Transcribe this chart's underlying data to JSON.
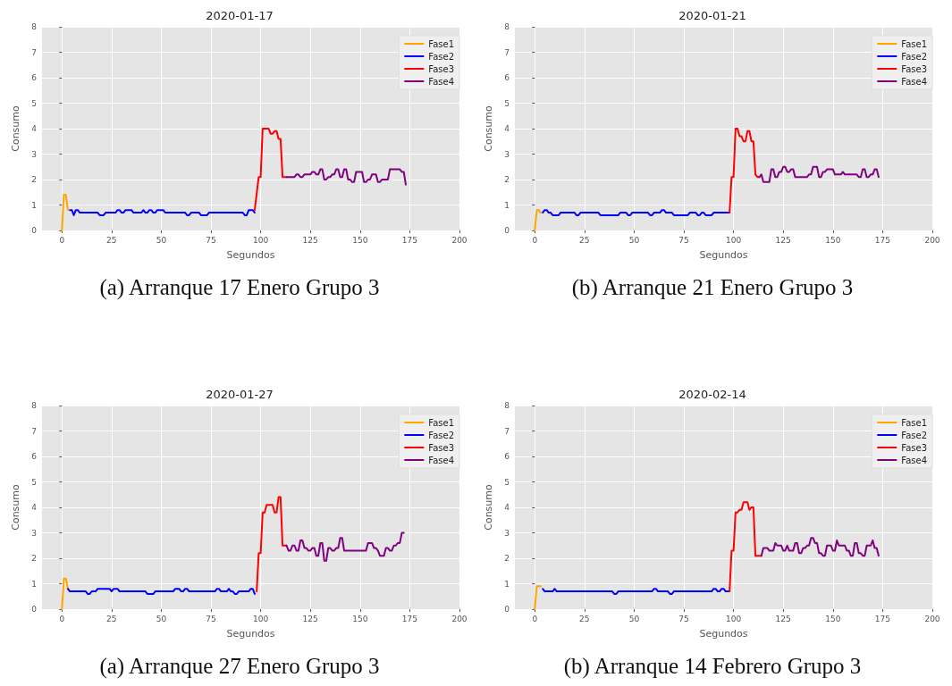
{
  "chart_data": [
    {
      "type": "line",
      "title": "2020-01-17",
      "xlabel": "Segundos",
      "ylabel": "Consumo",
      "annotations": [
        "(a) Arranque 17 Enero Grupo 3"
      ],
      "xlim": [
        -10,
        200
      ],
      "xticks": [
        0,
        25,
        50,
        75,
        100,
        125,
        150,
        175,
        200
      ],
      "ylim": [
        0,
        8
      ],
      "yticks": [
        0,
        1,
        2,
        3,
        4,
        5,
        6,
        7,
        8
      ],
      "grid": true,
      "legend": "top right",
      "line_style": "solid",
      "series": [
        {
          "name": "Fase1",
          "color": "#ffa500",
          "x": [
            0,
            1,
            2,
            3
          ],
          "values": [
            0,
            1.4,
            1.4,
            0.8
          ]
        },
        {
          "name": "Fase2",
          "color": "#0000ff",
          "x": [
            4,
            5,
            6,
            7,
            8,
            9,
            18,
            19,
            21,
            22,
            27,
            28,
            29,
            30,
            31,
            32,
            35,
            36,
            40,
            41,
            42,
            43,
            44,
            45,
            46,
            47,
            48,
            51,
            52,
            62,
            63,
            64,
            65,
            69,
            70,
            73,
            74,
            91,
            92,
            93,
            94,
            96,
            97
          ],
          "values": [
            0.8,
            0.8,
            0.6,
            0.8,
            0.8,
            0.7,
            0.7,
            0.6,
            0.6,
            0.7,
            0.7,
            0.8,
            0.8,
            0.7,
            0.7,
            0.8,
            0.8,
            0.7,
            0.7,
            0.8,
            0.7,
            0.7,
            0.8,
            0.8,
            0.7,
            0.7,
            0.8,
            0.8,
            0.7,
            0.7,
            0.6,
            0.6,
            0.7,
            0.7,
            0.6,
            0.6,
            0.7,
            0.7,
            0.6,
            0.6,
            0.8,
            0.8,
            0.7
          ]
        },
        {
          "name": "Fase3",
          "color": "#ff0000",
          "x": [
            97,
            99,
            100,
            101,
            104,
            105,
            106,
            107,
            108,
            109,
            110,
            111,
            113
          ],
          "values": [
            0.8,
            2.1,
            2.1,
            4.0,
            4.0,
            3.8,
            3.8,
            3.9,
            3.9,
            3.6,
            3.6,
            2.1,
            2.1
          ]
        },
        {
          "name": "Fase4",
          "color": "#800080",
          "x": [
            113,
            117,
            118,
            119,
            120,
            121,
            122,
            125,
            126,
            127,
            128,
            129,
            130,
            131,
            132,
            133,
            134,
            135,
            136,
            137,
            138,
            139,
            140,
            141,
            142,
            143,
            144,
            145,
            146,
            147,
            148,
            151,
            152,
            153,
            154,
            155,
            156,
            158,
            159,
            160,
            161,
            164,
            165,
            170,
            171,
            172,
            173
          ],
          "values": [
            2.1,
            2.1,
            2.2,
            2.2,
            2.1,
            2.1,
            2.2,
            2.2,
            2.3,
            2.3,
            2.2,
            2.2,
            2.4,
            2.4,
            2.0,
            2.0,
            2.1,
            2.1,
            2.2,
            2.2,
            2.4,
            2.4,
            2.1,
            2.1,
            2.4,
            2.4,
            2.0,
            2.0,
            1.9,
            1.9,
            2.3,
            2.3,
            1.9,
            1.9,
            2.0,
            2.0,
            2.2,
            2.2,
            1.9,
            1.9,
            2.0,
            2.0,
            2.4,
            2.4,
            2.3,
            2.3,
            1.8
          ]
        }
      ]
    },
    {
      "type": "line",
      "title": "2020-01-21",
      "xlabel": "Segundos",
      "ylabel": "Consumo",
      "annotations": [
        "(b) Arranque 21 Enero Grupo 3"
      ],
      "xlim": [
        -10,
        200
      ],
      "xticks": [
        0,
        25,
        50,
        75,
        100,
        125,
        150,
        175,
        200
      ],
      "ylim": [
        0,
        8
      ],
      "yticks": [
        0,
        1,
        2,
        3,
        4,
        5,
        6,
        7,
        8
      ],
      "grid": true,
      "legend": "top right",
      "line_style": "solid",
      "series": [
        {
          "name": "Fase1",
          "color": "#ffa500",
          "x": [
            0,
            1,
            2,
            3
          ],
          "values": [
            0,
            0.8,
            0.8,
            0.7
          ]
        },
        {
          "name": "Fase2",
          "color": "#0000ff",
          "x": [
            4,
            5,
            6,
            7,
            8,
            9,
            12,
            13,
            20,
            21,
            22,
            23,
            32,
            33,
            42,
            43,
            46,
            47,
            48,
            49,
            57,
            58,
            59,
            60,
            63,
            64,
            65,
            66,
            69,
            70,
            77,
            78,
            81,
            82,
            83,
            84,
            85,
            86,
            89,
            90,
            98
          ],
          "values": [
            0.7,
            0.8,
            0.8,
            0.7,
            0.7,
            0.6,
            0.6,
            0.7,
            0.7,
            0.6,
            0.6,
            0.7,
            0.7,
            0.6,
            0.6,
            0.7,
            0.7,
            0.6,
            0.6,
            0.7,
            0.7,
            0.6,
            0.6,
            0.7,
            0.7,
            0.8,
            0.8,
            0.7,
            0.7,
            0.6,
            0.6,
            0.7,
            0.7,
            0.6,
            0.6,
            0.7,
            0.7,
            0.6,
            0.6,
            0.7,
            0.7
          ]
        },
        {
          "name": "Fase3",
          "color": "#ff0000",
          "x": [
            98,
            99,
            100,
            101,
            102,
            103,
            104,
            105,
            106,
            107,
            108,
            109,
            110,
            111,
            112,
            113
          ],
          "values": [
            0.7,
            2.1,
            2.1,
            4.0,
            4.0,
            3.7,
            3.7,
            3.5,
            3.5,
            3.9,
            3.9,
            3.5,
            3.5,
            2.2,
            2.1,
            2.1
          ]
        },
        {
          "name": "Fase4",
          "color": "#800080",
          "x": [
            113,
            114,
            115,
            118,
            119,
            120,
            121,
            122,
            123,
            124,
            125,
            126,
            127,
            128,
            129,
            130,
            131,
            137,
            138,
            139,
            140,
            142,
            143,
            144,
            145,
            146,
            147,
            150,
            151,
            154,
            155,
            156,
            162,
            163,
            164,
            165,
            166,
            167,
            168,
            169,
            170,
            171,
            172,
            173
          ],
          "values": [
            2.1,
            2.2,
            1.9,
            1.9,
            2.4,
            2.4,
            2.1,
            2.1,
            2.3,
            2.3,
            2.5,
            2.5,
            2.3,
            2.3,
            2.4,
            2.4,
            2.1,
            2.1,
            2.2,
            2.2,
            2.5,
            2.5,
            2.1,
            2.1,
            2.3,
            2.3,
            2.4,
            2.4,
            2.2,
            2.2,
            2.3,
            2.2,
            2.2,
            2.1,
            2.1,
            2.4,
            2.4,
            2.1,
            2.1,
            2.2,
            2.2,
            2.4,
            2.4,
            2.1
          ]
        }
      ]
    },
    {
      "type": "line",
      "title": "2020-01-27",
      "xlabel": "Segundos",
      "ylabel": "Consumo",
      "annotations": [
        "(a) Arranque 27 Enero Grupo 3"
      ],
      "xlim": [
        -10,
        200
      ],
      "xticks": [
        0,
        25,
        50,
        75,
        100,
        125,
        150,
        175,
        200
      ],
      "ylim": [
        0,
        8
      ],
      "yticks": [
        0,
        1,
        2,
        3,
        4,
        5,
        6,
        7,
        8
      ],
      "grid": true,
      "legend": "top right",
      "line_style": "solid",
      "series": [
        {
          "name": "Fase1",
          "color": "#ffa500",
          "x": [
            0,
            1,
            2,
            3
          ],
          "values": [
            0,
            1.2,
            1.2,
            0.8
          ]
        },
        {
          "name": "Fase2",
          "color": "#0000ff",
          "x": [
            3,
            4,
            12,
            13,
            14,
            15,
            17,
            18,
            24,
            25,
            26,
            28,
            29,
            42,
            43,
            46,
            47,
            56,
            57,
            59,
            60,
            61,
            62,
            63,
            64,
            77,
            78,
            79,
            80,
            83,
            84,
            85,
            86,
            87,
            88,
            89,
            94,
            95,
            96,
            97
          ],
          "values": [
            0.8,
            0.7,
            0.7,
            0.6,
            0.6,
            0.7,
            0.7,
            0.8,
            0.8,
            0.7,
            0.8,
            0.8,
            0.7,
            0.7,
            0.6,
            0.6,
            0.7,
            0.7,
            0.8,
            0.8,
            0.7,
            0.7,
            0.8,
            0.8,
            0.7,
            0.7,
            0.8,
            0.8,
            0.7,
            0.7,
            0.8,
            0.7,
            0.7,
            0.6,
            0.6,
            0.7,
            0.7,
            0.8,
            0.8,
            0.6
          ]
        },
        {
          "name": "Fase3",
          "color": "#ff0000",
          "x": [
            98,
            99,
            100,
            101,
            102,
            103,
            106,
            107,
            108,
            109,
            110,
            111,
            113
          ],
          "values": [
            0.7,
            2.2,
            2.2,
            3.8,
            3.8,
            4.1,
            4.1,
            3.8,
            3.8,
            4.4,
            4.4,
            2.5,
            2.5
          ]
        },
        {
          "name": "Fase4",
          "color": "#800080",
          "x": [
            113,
            114,
            115,
            116,
            117,
            118,
            119,
            120,
            121,
            122,
            123,
            124,
            125,
            126,
            127,
            128,
            129,
            130,
            131,
            132,
            133,
            134,
            135,
            136,
            137,
            138,
            139,
            140,
            141,
            142,
            153,
            154,
            156,
            157,
            158,
            159,
            160,
            162,
            163,
            164,
            165,
            166,
            167,
            168,
            169,
            170,
            171,
            172
          ],
          "values": [
            2.5,
            2.3,
            2.3,
            2.5,
            2.5,
            2.3,
            2.3,
            2.7,
            2.7,
            2.4,
            2.4,
            2.3,
            2.3,
            2.4,
            2.4,
            2.1,
            2.1,
            2.6,
            2.6,
            1.9,
            1.9,
            2.4,
            2.4,
            2.3,
            2.3,
            2.4,
            2.4,
            2.8,
            2.8,
            2.3,
            2.3,
            2.6,
            2.6,
            2.4,
            2.4,
            2.3,
            2.1,
            2.1,
            2.4,
            2.4,
            2.3,
            2.3,
            2.5,
            2.5,
            2.6,
            2.6,
            3.0,
            3.0
          ]
        }
      ]
    },
    {
      "type": "line",
      "title": "2020-02-14",
      "xlabel": "Segundos",
      "ylabel": "Consumo",
      "annotations": [
        "(b) Arranque 14 Febrero Grupo 3"
      ],
      "xlim": [
        -10,
        200
      ],
      "xticks": [
        0,
        25,
        50,
        75,
        100,
        125,
        150,
        175,
        200
      ],
      "ylim": [
        0,
        8
      ],
      "yticks": [
        0,
        1,
        2,
        3,
        4,
        5,
        6,
        7,
        8
      ],
      "grid": true,
      "legend": "top right",
      "line_style": "solid",
      "series": [
        {
          "name": "Fase1",
          "color": "#ffa500",
          "x": [
            0,
            1,
            3
          ],
          "values": [
            0,
            0.9,
            0.9
          ]
        },
        {
          "name": "Fase2",
          "color": "#0000ff",
          "x": [
            4,
            5,
            9,
            10,
            11,
            39,
            40,
            41,
            42,
            59,
            60,
            61,
            62,
            67,
            68,
            69,
            70,
            89,
            90,
            91,
            92,
            93,
            94,
            95,
            96,
            98
          ],
          "values": [
            0.8,
            0.7,
            0.7,
            0.8,
            0.7,
            0.7,
            0.6,
            0.6,
            0.7,
            0.7,
            0.8,
            0.8,
            0.7,
            0.7,
            0.6,
            0.6,
            0.7,
            0.7,
            0.8,
            0.8,
            0.7,
            0.7,
            0.8,
            0.8,
            0.7,
            0.7
          ]
        },
        {
          "name": "Fase3",
          "color": "#ff0000",
          "x": [
            98,
            99,
            100,
            101,
            102,
            103,
            104,
            105,
            107,
            108,
            109,
            110,
            111,
            114
          ],
          "values": [
            0.7,
            2.3,
            2.3,
            3.8,
            3.8,
            3.9,
            3.9,
            4.2,
            4.2,
            3.9,
            4.0,
            4.0,
            2.1,
            2.1
          ]
        },
        {
          "name": "Fase4",
          "color": "#800080",
          "x": [
            114,
            115,
            117,
            118,
            120,
            121,
            122,
            124,
            125,
            126,
            127,
            128,
            130,
            131,
            132,
            133,
            134,
            135,
            136,
            137,
            138,
            139,
            140,
            141,
            142,
            143,
            144,
            145,
            146,
            147,
            149,
            150,
            151,
            152,
            153,
            156,
            157,
            158,
            159,
            160,
            161,
            162,
            163,
            164,
            165,
            166,
            167,
            169,
            170,
            171,
            172,
            173
          ],
          "values": [
            2.1,
            2.4,
            2.4,
            2.3,
            2.3,
            2.6,
            2.5,
            2.5,
            2.3,
            2.3,
            2.5,
            2.3,
            2.3,
            2.6,
            2.6,
            2.2,
            2.2,
            2.4,
            2.4,
            2.5,
            2.5,
            2.8,
            2.8,
            2.6,
            2.6,
            2.2,
            2.2,
            2.1,
            2.1,
            2.5,
            2.5,
            2.3,
            2.3,
            2.7,
            2.5,
            2.5,
            2.3,
            2.3,
            2.1,
            2.1,
            2.6,
            2.6,
            2.2,
            2.2,
            2.1,
            2.1,
            2.5,
            2.5,
            2.7,
            2.4,
            2.4,
            2.1
          ]
        }
      ]
    }
  ]
}
